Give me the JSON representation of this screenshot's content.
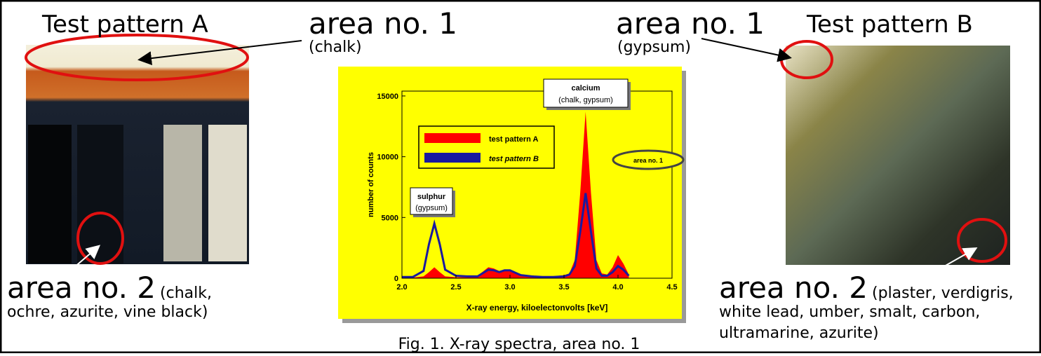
{
  "panel_a": {
    "title": "Test pattern A",
    "area1": "area no. 1",
    "area1_note": "(chalk)",
    "area2": "area no. 2",
    "area2_note_1": "(chalk,",
    "area2_note_2": "ochre, azurite, vine black)"
  },
  "panel_b": {
    "title": "Test pattern B",
    "area1": "area no. 1",
    "area1_note": "(gypsum)",
    "area2": "area no. 2",
    "area2_note_1": "(plaster, verdigris,",
    "area2_note_2": "white lead, umber, smalt, carbon,",
    "area2_note_3": "ultramarine, azurite)"
  },
  "caption": "Fig. 1. X-ray spectra, area no. 1",
  "chart_data": {
    "type": "area",
    "x_label": "X-ray energy, kiloelectonvolts [keV]",
    "y_label": "number of counts",
    "x": [
      2.0,
      2.1,
      2.2,
      2.25,
      2.3,
      2.35,
      2.4,
      2.5,
      2.6,
      2.7,
      2.8,
      2.85,
      2.9,
      2.95,
      3.0,
      3.05,
      3.1,
      3.2,
      3.3,
      3.4,
      3.5,
      3.55,
      3.6,
      3.65,
      3.7,
      3.75,
      3.8,
      3.85,
      3.9,
      3.95,
      4.0,
      4.05,
      4.1
    ],
    "series": [
      {
        "name": "test pattern A",
        "color": "#ff0000",
        "values": [
          50,
          50,
          150,
          500,
          900,
          500,
          150,
          80,
          80,
          200,
          900,
          800,
          600,
          700,
          700,
          500,
          300,
          200,
          150,
          150,
          250,
          400,
          1500,
          7000,
          13700,
          7000,
          1500,
          400,
          300,
          900,
          1900,
          1200,
          300
        ]
      },
      {
        "name": "test pattern B",
        "color": "#1a1aa0",
        "values": [
          100,
          100,
          600,
          2800,
          4500,
          2800,
          700,
          200,
          150,
          150,
          700,
          650,
          500,
          650,
          650,
          450,
          250,
          150,
          100,
          100,
          150,
          300,
          1000,
          3800,
          7000,
          3800,
          800,
          200,
          200,
          500,
          1000,
          700,
          200
        ]
      }
    ],
    "xlim": [
      2.0,
      4.5
    ],
    "ylim": [
      0,
      15400
    ],
    "xticks": [
      {
        "value": 2.0,
        "label": "2.0"
      },
      2.5,
      {
        "value": 3.0,
        "label": "3.0"
      },
      3.5,
      {
        "value": 4.0,
        "label": "4.0"
      },
      4.5
    ],
    "yticks": [
      0,
      5000,
      10000,
      15000
    ],
    "annotations": {
      "calcium": "calcium",
      "calcium_note": "(chalk, gypsum)",
      "sulphur": "sulphur",
      "sulphur_note": "(gypsum)",
      "area": "area no. 1"
    }
  }
}
